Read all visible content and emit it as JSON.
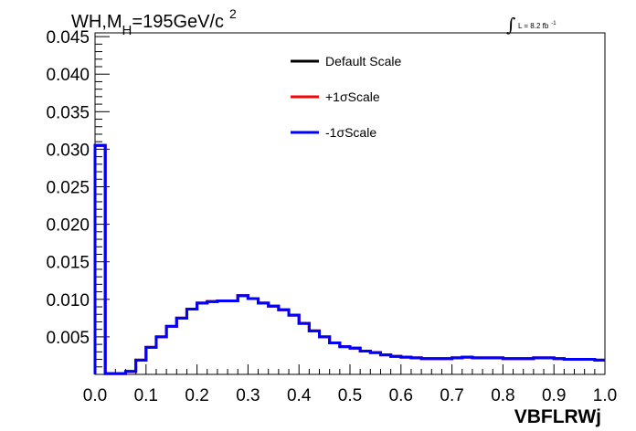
{
  "chart_data": {
    "type": "line",
    "title": {
      "main": "WH,M",
      "subscript": "H",
      "rest": "=195GeV/c",
      "superscript": "2"
    },
    "luminosity": {
      "integral_symbol": "∫",
      "text": "L = 8.2 fb",
      "superscript": "-1"
    },
    "xlabel": "VBFLRWj",
    "ylabel": "",
    "xlim": [
      0.0,
      1.0
    ],
    "ylim": [
      0.0,
      0.0455
    ],
    "xticks": [
      "0.0",
      "0.1",
      "0.2",
      "0.3",
      "0.4",
      "0.5",
      "0.6",
      "0.7",
      "0.8",
      "0.9",
      "1.0"
    ],
    "yticks": [
      "0.005",
      "0.010",
      "0.015",
      "0.020",
      "0.025",
      "0.030",
      "0.035",
      "0.040",
      "0.045"
    ],
    "legend_position": "top-center",
    "bin_edges": [
      0.0,
      0.02,
      0.04,
      0.06,
      0.08,
      0.1,
      0.12,
      0.14,
      0.16,
      0.18,
      0.2,
      0.22,
      0.24,
      0.26,
      0.28,
      0.3,
      0.32,
      0.34,
      0.36,
      0.38,
      0.4,
      0.42,
      0.44,
      0.46,
      0.48,
      0.5,
      0.52,
      0.54,
      0.56,
      0.58,
      0.6,
      0.62,
      0.64,
      0.66,
      0.68,
      0.7,
      0.72,
      0.74,
      0.76,
      0.78,
      0.8,
      0.82,
      0.84,
      0.86,
      0.88,
      0.9,
      0.92,
      0.94,
      0.96,
      0.98,
      1.0
    ],
    "series": [
      {
        "name": "Default Scale",
        "color": "#000000",
        "values": [
          0.0305,
          0.0001,
          0.0001,
          0.0004,
          0.0019,
          0.0036,
          0.005,
          0.0064,
          0.0075,
          0.0087,
          0.0095,
          0.0097,
          0.0098,
          0.0098,
          0.0105,
          0.0101,
          0.0095,
          0.0091,
          0.0086,
          0.0079,
          0.0068,
          0.0058,
          0.005,
          0.0042,
          0.0037,
          0.0035,
          0.0031,
          0.0029,
          0.0026,
          0.0024,
          0.0023,
          0.0022,
          0.0021,
          0.0021,
          0.0021,
          0.0022,
          0.0023,
          0.0022,
          0.0022,
          0.0022,
          0.0021,
          0.0021,
          0.0021,
          0.0022,
          0.0022,
          0.0021,
          0.002,
          0.002,
          0.002,
          0.0019
        ]
      },
      {
        "name": "+1σScale",
        "color": "#ff0000",
        "values": [
          0.0305,
          0.0001,
          0.0001,
          0.0004,
          0.0019,
          0.0036,
          0.005,
          0.0064,
          0.0075,
          0.0087,
          0.0095,
          0.0097,
          0.0098,
          0.0098,
          0.0105,
          0.0101,
          0.0095,
          0.0091,
          0.0086,
          0.0079,
          0.0068,
          0.0058,
          0.005,
          0.0042,
          0.0037,
          0.0035,
          0.0031,
          0.0029,
          0.0026,
          0.0024,
          0.0023,
          0.0022,
          0.0021,
          0.0021,
          0.0021,
          0.0022,
          0.0023,
          0.0022,
          0.0022,
          0.0022,
          0.0021,
          0.0021,
          0.0021,
          0.0022,
          0.0022,
          0.0021,
          0.002,
          0.002,
          0.002,
          0.0019
        ]
      },
      {
        "name": "-1σScale",
        "color": "#0000ff",
        "values": [
          0.0305,
          0.0001,
          0.0001,
          0.0004,
          0.0019,
          0.0036,
          0.005,
          0.0064,
          0.0075,
          0.0087,
          0.0095,
          0.0097,
          0.0098,
          0.0098,
          0.0105,
          0.0101,
          0.0095,
          0.0091,
          0.0086,
          0.0079,
          0.0068,
          0.0058,
          0.005,
          0.0042,
          0.0037,
          0.0035,
          0.0031,
          0.0029,
          0.0026,
          0.0024,
          0.0023,
          0.0022,
          0.0021,
          0.0021,
          0.0021,
          0.0022,
          0.0023,
          0.0022,
          0.0022,
          0.0022,
          0.0021,
          0.0021,
          0.0021,
          0.0022,
          0.0022,
          0.0021,
          0.002,
          0.002,
          0.002,
          0.0019
        ]
      }
    ]
  }
}
